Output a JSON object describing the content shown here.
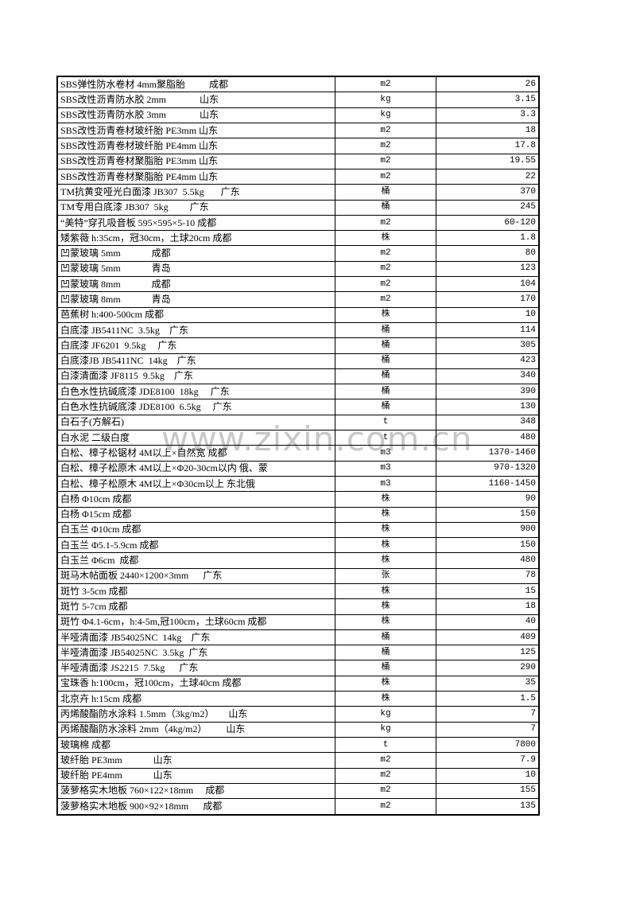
{
  "watermark": "www.zixin.com.cn",
  "colors": {
    "background": "#ffffff",
    "text": "#000000",
    "border": "#000000",
    "watermark": "#c8c8c8"
  },
  "table": {
    "rows": [
      {
        "item": "SBS弹性防水卷材 4mm聚脂胎          成都",
        "unit": "m2",
        "price": "26"
      },
      {
        "item": "SBS改性沥青防水胶 2mm              山东",
        "unit": "kg",
        "price": "3.15"
      },
      {
        "item": "SBS改性沥青防水胶 3mm              山东",
        "unit": "kg",
        "price": "3.3"
      },
      {
        "item": "SBS改性沥青卷材玻纤胎 PE3mm 山东",
        "unit": "m2",
        "price": "18"
      },
      {
        "item": "SBS改性沥青卷材玻纤胎 PE4mm 山东",
        "unit": "m2",
        "price": "17.8"
      },
      {
        "item": "SBS改性沥青卷材聚脂胎 PE3mm 山东",
        "unit": "m2",
        "price": "19.55"
      },
      {
        "item": "SBS改性沥青卷材聚脂胎 PE4mm 山东",
        "unit": "m2",
        "price": "22"
      },
      {
        "item": "TM抗黄变哑光白面漆 JB307  5.5kg       广东",
        "unit": "桶",
        "price": "370"
      },
      {
        "item": "TM专用白底漆 JB307  5kg         广东",
        "unit": "桶",
        "price": "245"
      },
      {
        "item": "“美特”穿孔吸音板 595×595×5-10 成都",
        "unit": "m2",
        "price": "60-120"
      },
      {
        "item": "矮紫薇 h:35cm，冠30cm，土球20cm 成都",
        "unit": "株",
        "price": "1.8"
      },
      {
        "item": "凹蒙玻璃 5mm             成都",
        "unit": "m2",
        "price": "80"
      },
      {
        "item": "凹蒙玻璃 5mm             青岛",
        "unit": "m2",
        "price": "123"
      },
      {
        "item": "凹蒙玻璃 8mm             成都",
        "unit": "m2",
        "price": "104"
      },
      {
        "item": "凹蒙玻璃 8mm             青岛",
        "unit": "m2",
        "price": "170"
      },
      {
        "item": "芭蕉树 h:400-500cm 成都",
        "unit": "株",
        "price": "10"
      },
      {
        "item": "白底漆 JB5411NC  3.5kg    广东",
        "unit": "桶",
        "price": "114"
      },
      {
        "item": "白底漆 JF6201  9.5kg     广东",
        "unit": "桶",
        "price": "305"
      },
      {
        "item": "白底漆JB JB5411NC  14kg    广东",
        "unit": "桶",
        "price": "423"
      },
      {
        "item": "白漆清面漆 JF8115  9.5kg    广东",
        "unit": "桶",
        "price": "340"
      },
      {
        "item": "白色水性抗碱底漆 JDE8100  18kg     广东",
        "unit": "桶",
        "price": "390"
      },
      {
        "item": "白色水性抗碱底漆 JDE8100  6.5kg     广东",
        "unit": "桶",
        "price": "130"
      },
      {
        "item": "白石子(方解石)",
        "unit": "t",
        "price": "348"
      },
      {
        "item": "白水泥 二级白度",
        "unit": "t",
        "price": "480"
      },
      {
        "item": "白松、樟子松锯材 4M以上×自然宽 成都",
        "unit": "m3",
        "price": "1370-1460"
      },
      {
        "item": "白松、樟子松原木 4M以上×Φ20-30cm以内 俄、蒙",
        "unit": "m3",
        "price": "970-1320"
      },
      {
        "item": "白松、樟子松原木 4M以上×Φ30cm以上 东北俄",
        "unit": "m3",
        "price": "1160-1450"
      },
      {
        "item": "白杨 Φ10cm 成都",
        "unit": "株",
        "price": "90"
      },
      {
        "item": "白杨 Φ15cm 成都",
        "unit": "株",
        "price": "150"
      },
      {
        "item": "白玉兰 Φ10cm 成都",
        "unit": "株",
        "price": "900"
      },
      {
        "item": "白玉兰 Φ5.1-5.9cm 成都",
        "unit": "株",
        "price": "150"
      },
      {
        "item": "白玉兰 Φ6cm  成都",
        "unit": "株",
        "price": "480"
      },
      {
        "item": "斑马木帖面板 2440×1200×3mm      广东",
        "unit": "张",
        "price": "78"
      },
      {
        "item": "斑竹 3-5cm 成都",
        "unit": "株",
        "price": "15"
      },
      {
        "item": "斑竹 5-7cm 成都",
        "unit": "株",
        "price": "18"
      },
      {
        "item": "斑竹 Φ4.1-6cm，h:4-5m,冠100cm，土球60cm 成都",
        "unit": "株",
        "price": "40"
      },
      {
        "item": "半哑清面漆 JB54025NC  14kg    广东",
        "unit": "桶",
        "price": "409"
      },
      {
        "item": "半哑清面漆 JB54025NC  3.5kg  广东",
        "unit": "桶",
        "price": "125"
      },
      {
        "item": "半哑清面漆 JS2215  7.5kg      广东",
        "unit": "桶",
        "price": "290"
      },
      {
        "item": "宝珠香 h:100cm，冠100cm，土球40cm 成都",
        "unit": "株",
        "price": "35"
      },
      {
        "item": "北京卉 h:15cm 成都",
        "unit": "株",
        "price": "1.5"
      },
      {
        "item": "丙烯酸酯防水涂料 1.5mm（3kg/m2）      山东",
        "unit": "kg",
        "price": "7"
      },
      {
        "item": "丙烯酸酯防水涂料 2mm（4kg/m2）        山东",
        "unit": "kg",
        "price": "7"
      },
      {
        "item": "玻璃棉 成都",
        "unit": "t",
        "price": "7800"
      },
      {
        "item": "玻纤胎 PE3mm             山东",
        "unit": "m2",
        "price": "7.9"
      },
      {
        "item": "玻纤胎 PE4mm             山东",
        "unit": "m2",
        "price": "10"
      },
      {
        "item": "菠萝格实木地板 760×122×18mm     成都",
        "unit": "m2",
        "price": "155"
      },
      {
        "item": "菠萝格实木地板 900×92×18mm      成都",
        "unit": "m2",
        "price": "135"
      }
    ]
  }
}
